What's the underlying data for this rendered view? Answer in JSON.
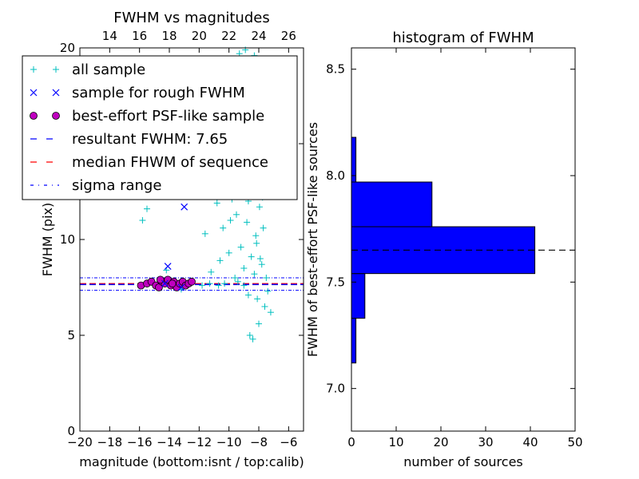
{
  "chart_data": [
    {
      "type": "scatter",
      "title": "FWHM vs magnitudes",
      "xlabel": "magnitude (bottom:isnt / top:calib)",
      "ylabel": "FWHM (pix)",
      "xlim": [
        -20,
        -5
      ],
      "ylim": [
        0,
        20
      ],
      "x_ticks": [
        "−20",
        "−18",
        "−16",
        "−14",
        "−12",
        "−10",
        "−8",
        "−6"
      ],
      "x_tick_values": [
        -20,
        -18,
        -16,
        -14,
        -12,
        -10,
        -8,
        -6
      ],
      "y_ticks": [
        "0",
        "5",
        "10",
        "15",
        "20"
      ],
      "y_tick_values": [
        0,
        5,
        10,
        15,
        20
      ],
      "top_axis": {
        "ticks": [
          "14",
          "16",
          "18",
          "20",
          "22",
          "24",
          "26"
        ],
        "tick_values": [
          14,
          16,
          18,
          20,
          22,
          24,
          26
        ],
        "offset": 32
      },
      "legend": {
        "placement": "upper-left",
        "entries": [
          {
            "label": "all sample",
            "marker": "plus",
            "color": "#00bfbf"
          },
          {
            "label": "sample for rough FWHM",
            "marker": "x",
            "color": "#0000ff"
          },
          {
            "label": "best-effort PSF-like sample",
            "marker": "circle",
            "color": "#bf00bf"
          },
          {
            "label": "resultant FWHM: 7.65",
            "marker": "dashed",
            "color": "#0000ff"
          },
          {
            "label": "median FHWM of sequence",
            "marker": "dashed",
            "color": "#ff0000"
          },
          {
            "label": "sigma range",
            "marker": "dashdot",
            "color": "#0000ff"
          }
        ]
      },
      "lines": {
        "resultant_fwhm": 7.65,
        "median_fwhm": 7.68,
        "sigma_low": 7.35,
        "sigma_high": 8.0
      },
      "series": [
        {
          "name": "all sample",
          "points": [
            [
              -15.8,
              11.0
            ],
            [
              -15.5,
              11.6
            ],
            [
              -14.2,
              8.4
            ],
            [
              -13.2,
              7.4
            ],
            [
              -12.4,
              12.3
            ],
            [
              -12.0,
              12.8
            ],
            [
              -11.6,
              10.3
            ],
            [
              -11.2,
              8.3
            ],
            [
              -11.0,
              14.4
            ],
            [
              -10.8,
              11.9
            ],
            [
              -10.6,
              8.9
            ],
            [
              -10.4,
              10.6
            ],
            [
              -10.2,
              15.3
            ],
            [
              -10.0,
              9.3
            ],
            [
              -9.8,
              12.1
            ],
            [
              -9.7,
              17.2
            ],
            [
              -9.6,
              8.0
            ],
            [
              -9.5,
              11.3
            ],
            [
              -9.3,
              19.7
            ],
            [
              -9.2,
              9.6
            ],
            [
              -9.1,
              13.5
            ],
            [
              -9.0,
              8.5
            ],
            [
              -8.9,
              16.3
            ],
            [
              -8.8,
              10.9
            ],
            [
              -8.7,
              7.1
            ],
            [
              -8.6,
              14.6
            ],
            [
              -8.5,
              9.1
            ],
            [
              -8.4,
              12.6
            ],
            [
              -8.3,
              8.2
            ],
            [
              -8.25,
              18.1
            ],
            [
              -8.2,
              10.2
            ],
            [
              -8.1,
              6.9
            ],
            [
              -8.0,
              15.0
            ],
            [
              -7.95,
              11.7
            ],
            [
              -7.9,
              9.0
            ],
            [
              -7.85,
              13.4
            ],
            [
              -7.8,
              8.7
            ],
            [
              -7.7,
              10.6
            ],
            [
              -7.6,
              6.5
            ],
            [
              -7.5,
              8.0
            ],
            [
              -7.4,
              7.3
            ],
            [
              -7.2,
              6.2
            ],
            [
              -8.6,
              5.0
            ],
            [
              -8.4,
              4.8
            ],
            [
              -8.0,
              5.6
            ],
            [
              -9.0,
              7.6
            ],
            [
              -9.4,
              7.8
            ],
            [
              -10.3,
              7.7
            ],
            [
              -10.7,
              7.6
            ],
            [
              -11.3,
              7.7
            ],
            [
              -11.8,
              7.6
            ],
            [
              -12.5,
              7.8
            ],
            [
              -8.9,
              19.9
            ],
            [
              -8.3,
              19.6
            ],
            [
              -9.5,
              14.0
            ],
            [
              -9.9,
              11.0
            ],
            [
              -10.1,
              13.2
            ],
            [
              -8.7,
              12.0
            ],
            [
              -8.15,
              9.8
            ],
            [
              -7.75,
              12.2
            ]
          ]
        },
        {
          "name": "sample for rough FWHM",
          "points": [
            [
              -14.1,
              8.6
            ],
            [
              -13.0,
              11.7
            ],
            [
              -13.2,
              7.5
            ],
            [
              -14.3,
              7.7
            ]
          ]
        },
        {
          "name": "best-effort PSF-like sample",
          "points": [
            [
              -15.9,
              7.6
            ],
            [
              -15.5,
              7.7
            ],
            [
              -15.2,
              7.8
            ],
            [
              -14.9,
              7.6
            ],
            [
              -14.7,
              7.5
            ],
            [
              -14.5,
              7.8
            ],
            [
              -14.3,
              7.7
            ],
            [
              -14.1,
              7.9
            ],
            [
              -13.9,
              7.6
            ],
            [
              -13.7,
              7.8
            ],
            [
              -13.5,
              7.5
            ],
            [
              -13.3,
              7.7
            ],
            [
              -13.1,
              7.8
            ],
            [
              -12.9,
              7.6
            ],
            [
              -12.7,
              7.7
            ],
            [
              -12.5,
              7.8
            ],
            [
              -14.6,
              7.9
            ],
            [
              -13.8,
              7.7
            ]
          ]
        }
      ]
    },
    {
      "type": "bar",
      "orientation": "horizontal",
      "title": "histogram of FWHM",
      "xlabel": "number of sources",
      "ylabel": "FWHM of best-effort PSF-like sources",
      "xlim": [
        0,
        50
      ],
      "ylim": [
        6.8,
        8.6
      ],
      "x_ticks": [
        "0",
        "10",
        "20",
        "30",
        "40",
        "50"
      ],
      "x_tick_values": [
        0,
        10,
        20,
        30,
        40,
        50
      ],
      "y_ticks": [
        "7.0",
        "7.5",
        "8.0",
        "8.5"
      ],
      "y_tick_values": [
        7.0,
        7.5,
        8.0,
        8.5
      ],
      "bar_color": "#0000ff",
      "bins": [
        {
          "low": 7.12,
          "high": 7.33,
          "count": 1
        },
        {
          "low": 7.33,
          "high": 7.54,
          "count": 3
        },
        {
          "low": 7.54,
          "high": 7.76,
          "count": 41
        },
        {
          "low": 7.76,
          "high": 7.97,
          "count": 18
        },
        {
          "low": 7.97,
          "high": 8.18,
          "count": 1
        }
      ],
      "reference_line": 7.65
    }
  ]
}
